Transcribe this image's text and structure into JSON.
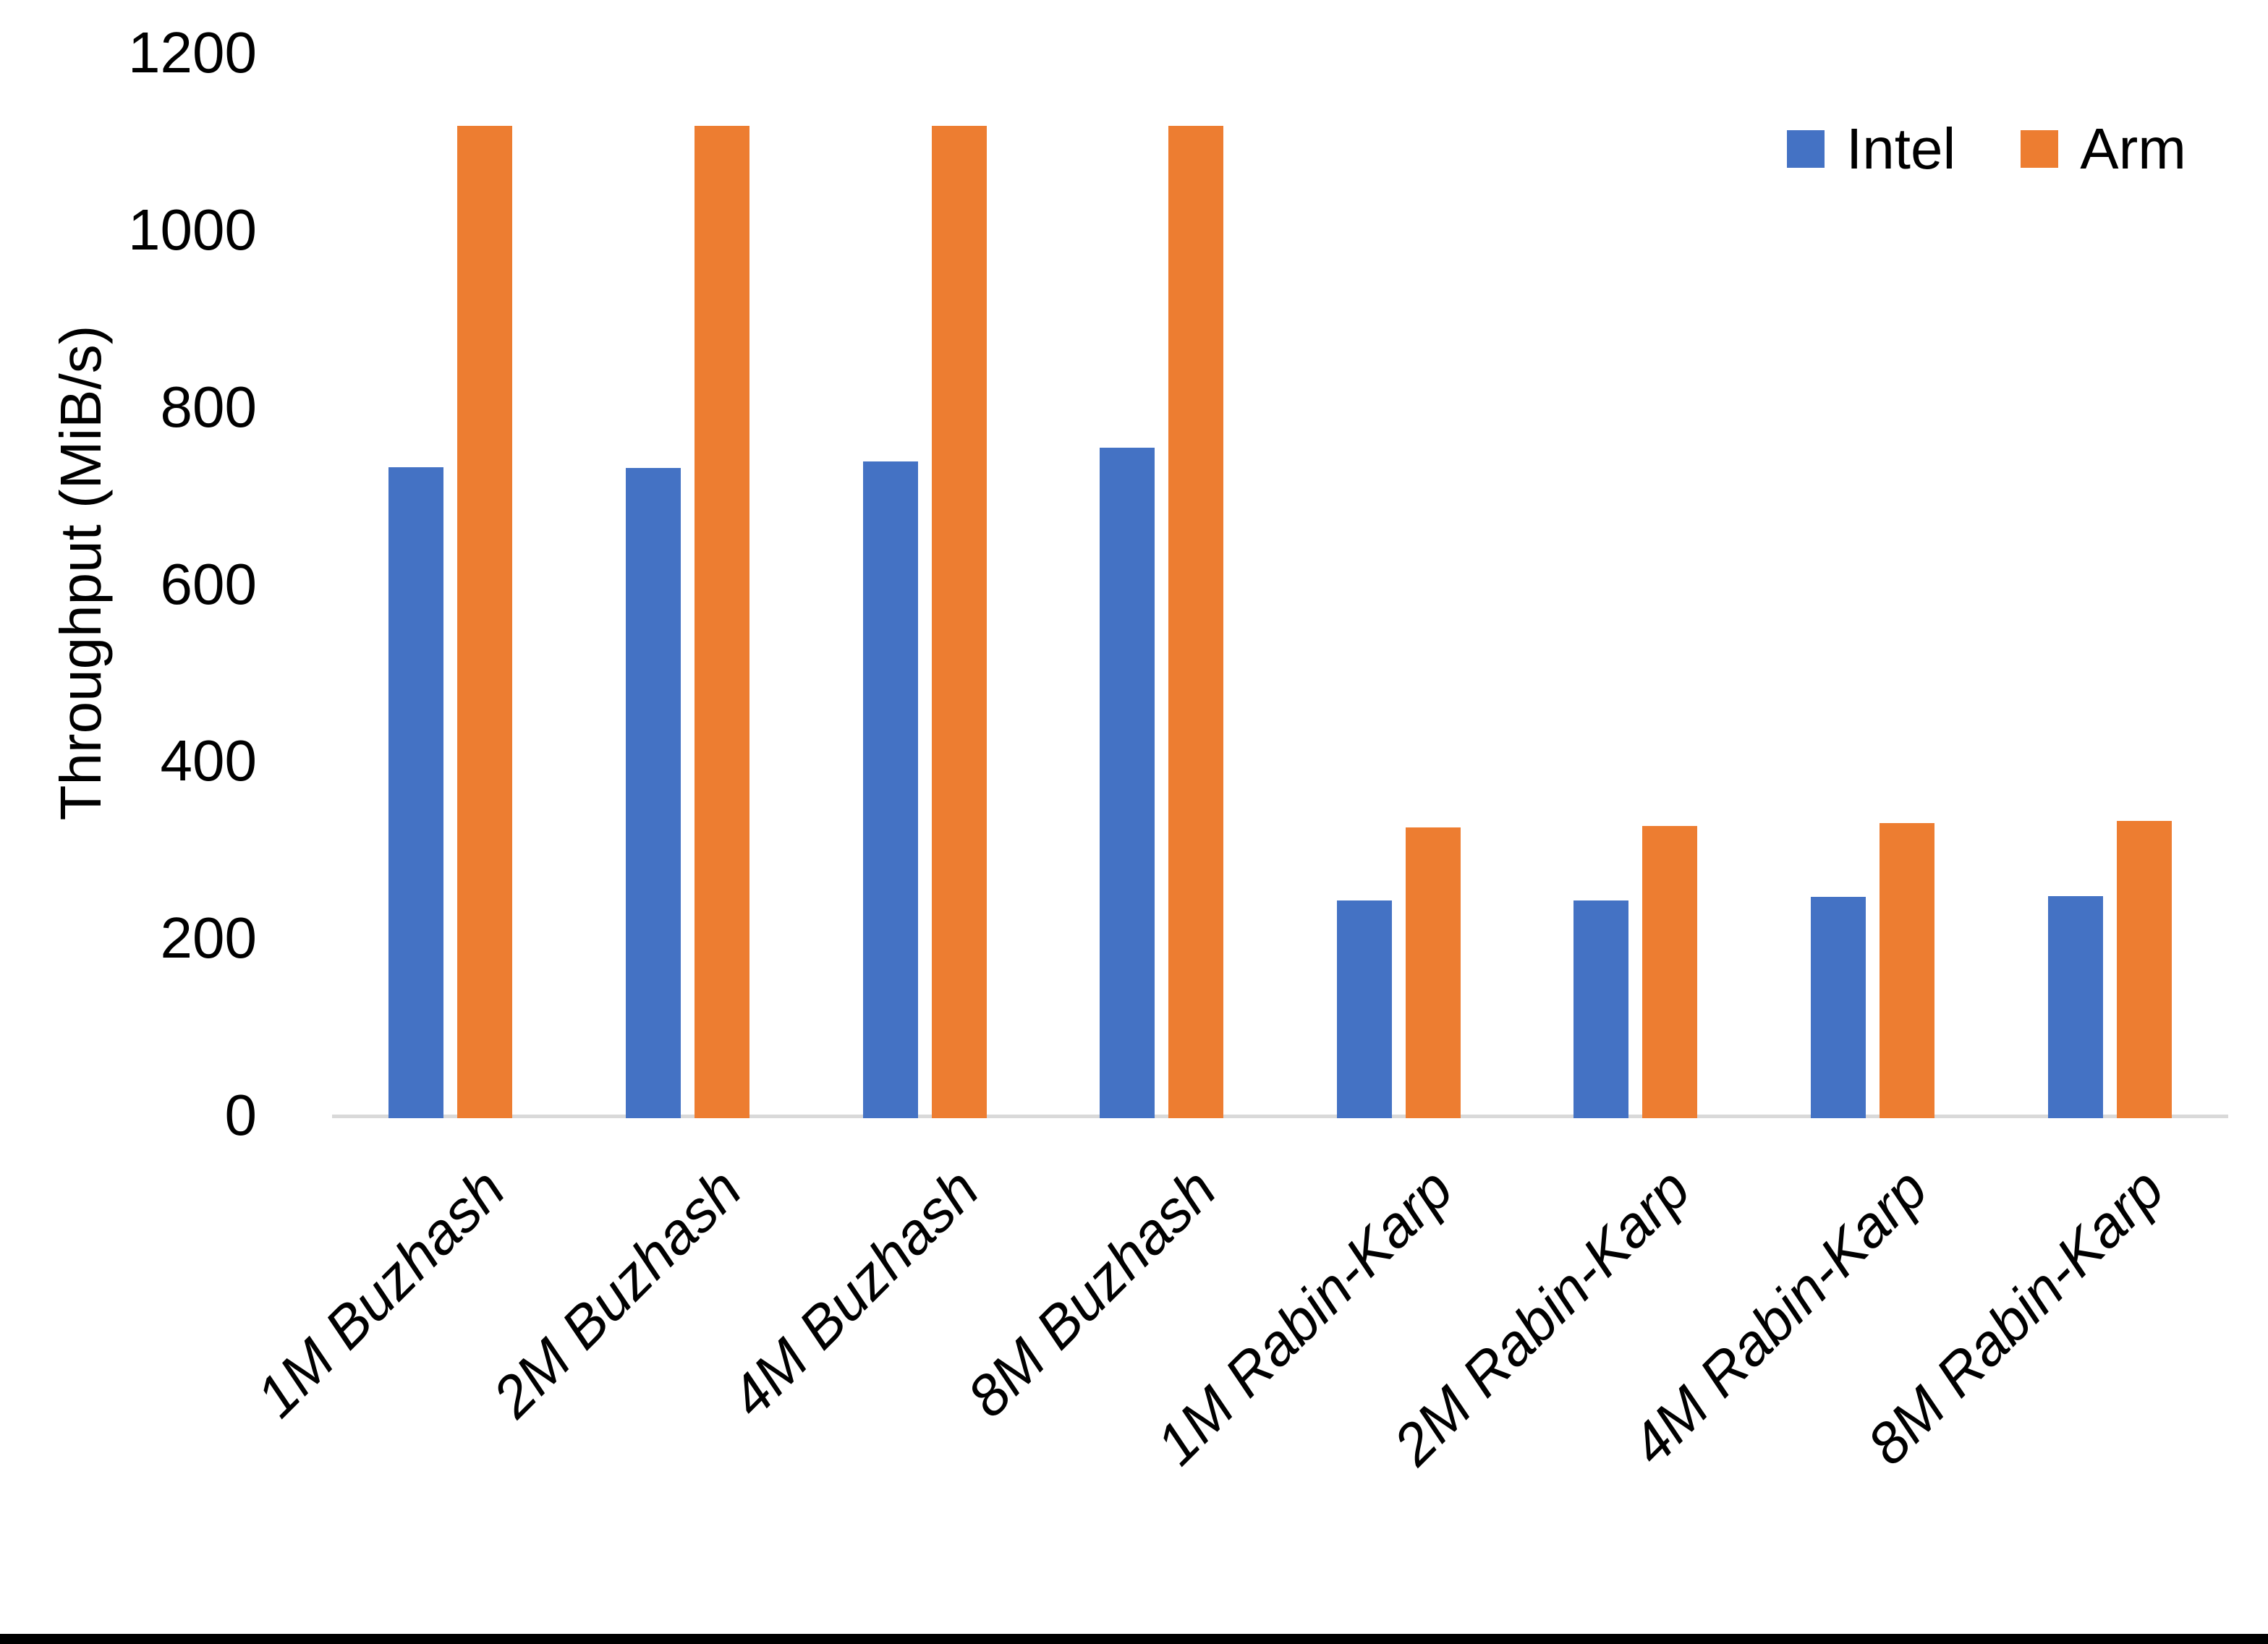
{
  "chart_data": {
    "type": "bar",
    "title": "",
    "xlabel": "",
    "ylabel": "Throughput (MiB/s)",
    "ylim": [
      0,
      1200
    ],
    "yticks": [
      0,
      200,
      400,
      600,
      800,
      1000,
      1200
    ],
    "grid": false,
    "legend_position": "top-right",
    "categories": [
      "1M Buzhash",
      "2M Buzhash",
      "4M Buzhash",
      "8M Buzhash",
      "1M Rabin-Karp",
      "2M Rabin-Karp",
      "4M Rabin-Karp",
      "8M Rabin-Karp"
    ],
    "series": [
      {
        "name": "Intel",
        "color": "#4472C4",
        "values": [
          735,
          734,
          742,
          757,
          246,
          246,
          250,
          251
        ]
      },
      {
        "name": "Arm",
        "color": "#ED7D31",
        "values": [
          1121,
          1121,
          1121,
          1121,
          328,
          330,
          333,
          336
        ]
      }
    ]
  },
  "legend": {
    "intel_label": "Intel",
    "arm_label": "Arm"
  },
  "colors": {
    "intel": "#4472C4",
    "arm": "#ED7D31",
    "axis_line": "#D9D9D9",
    "text": "#000000",
    "bottom_border": "#000000"
  }
}
